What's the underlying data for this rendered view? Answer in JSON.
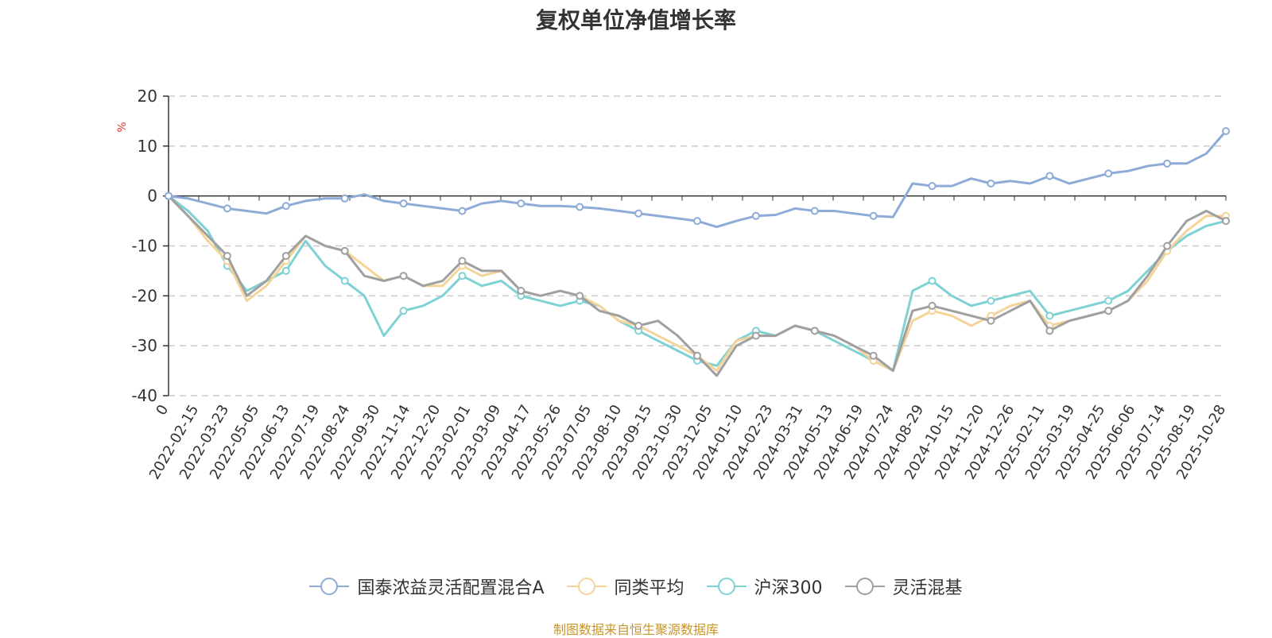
{
  "chart_data": {
    "type": "line",
    "title": "复权单位净值增长率",
    "y_unit": "%",
    "ylim": [
      -40,
      20
    ],
    "y_ticks": [
      "20",
      "10",
      "0",
      "-10",
      "-20",
      "-30",
      "-40"
    ],
    "x_tick_labels": [
      "0",
      "2022-02-15",
      "2022-03-23",
      "2022-05-05",
      "2022-06-13",
      "2022-07-19",
      "2022-08-24",
      "2022-09-30",
      "2022-11-14",
      "2022-12-20",
      "2023-02-01",
      "2023-03-09",
      "2023-04-17",
      "2023-05-26",
      "2023-07-05",
      "2023-08-10",
      "2023-09-15",
      "2023-10-30",
      "2023-12-05",
      "2024-01-10",
      "2024-02-23",
      "2024-03-31",
      "2024-05-13",
      "2024-06-19",
      "2024-07-24",
      "2024-08-29",
      "2024-10-15",
      "2024-11-20",
      "2024-12-26",
      "2025-02-11",
      "2025-03-19",
      "2025-04-25",
      "2025-06-06",
      "2025-07-14",
      "2025-08-19",
      "2025-10-28"
    ],
    "grid": "horizontal dashed",
    "legend_position": "bottom",
    "series": [
      {
        "name": "国泰浓益灵活配置混合A",
        "color": "#8eabd8",
        "values": [
          0,
          -0.5,
          -1.5,
          -2.5,
          -3,
          -3.5,
          -2,
          -1,
          -0.5,
          -0.5,
          0.3,
          -1,
          -1.5,
          -2,
          -2.5,
          -3,
          -1.5,
          -1,
          -1.5,
          -2,
          -2,
          -2.2,
          -2.5,
          -3,
          -3.5,
          -4,
          -4.5,
          -5,
          -6.2,
          -5,
          -4,
          -3.8,
          -2.5,
          -3,
          -3,
          -3.5,
          -4,
          -4.2,
          2.5,
          2,
          2,
          3.5,
          2.5,
          3,
          2.5,
          4,
          2.5,
          3.5,
          4.5,
          5,
          6,
          6.5,
          6.5,
          8.5,
          13
        ]
      },
      {
        "name": "同类平均",
        "color": "#f5d49a",
        "values": [
          0,
          -4,
          -9,
          -13,
          -21,
          -18,
          -13,
          -8,
          -10,
          -11,
          -14,
          -17,
          -16,
          -18,
          -18,
          -14,
          -16,
          -15,
          -19,
          -20,
          -19,
          -20,
          -22,
          -25,
          -26,
          -28,
          -30,
          -32,
          -35,
          -29,
          -28,
          -28,
          -26,
          -27,
          -28,
          -30,
          -33,
          -35,
          -25,
          -23,
          -24,
          -26,
          -24,
          -22,
          -21,
          -26,
          -25,
          -24,
          -23,
          -21,
          -17,
          -11,
          -7,
          -4,
          -4
        ]
      },
      {
        "name": "沪深300",
        "color": "#7fd2d4",
        "values": [
          0,
          -3,
          -7,
          -14,
          -19,
          -17,
          -15,
          -9,
          -14,
          -17,
          -20,
          -28,
          -23,
          -22,
          -20,
          -16,
          -18,
          -17,
          -20,
          -21,
          -22,
          -21,
          -22,
          -25,
          -27,
          -29,
          -31,
          -33,
          -34,
          -29,
          -27,
          -28,
          -26,
          -27,
          -29,
          -31,
          -33,
          -35,
          -19,
          -17,
          -20,
          -22,
          -21,
          -20,
          -19,
          -24,
          -23,
          -22,
          -21,
          -19,
          -15,
          -11,
          -8,
          -6,
          -5
        ]
      },
      {
        "name": "灵活混基",
        "color": "#a0a0a0",
        "values": [
          0,
          -4,
          -8,
          -12,
          -20,
          -17,
          -12,
          -8,
          -10,
          -11,
          -16,
          -17,
          -16,
          -18,
          -17,
          -13,
          -15,
          -15,
          -19,
          -20,
          -19,
          -20,
          -23,
          -24,
          -26,
          -25,
          -28,
          -32,
          -36,
          -30,
          -28,
          -28,
          -26,
          -27,
          -28,
          -30,
          -32,
          -35,
          -23,
          -22,
          -23,
          -24,
          -25,
          -23,
          -21,
          -27,
          -25,
          -24,
          -23,
          -21,
          -16,
          -10,
          -5,
          -3,
          -5
        ]
      }
    ]
  },
  "source": "制图数据来自恒生聚源数据库"
}
